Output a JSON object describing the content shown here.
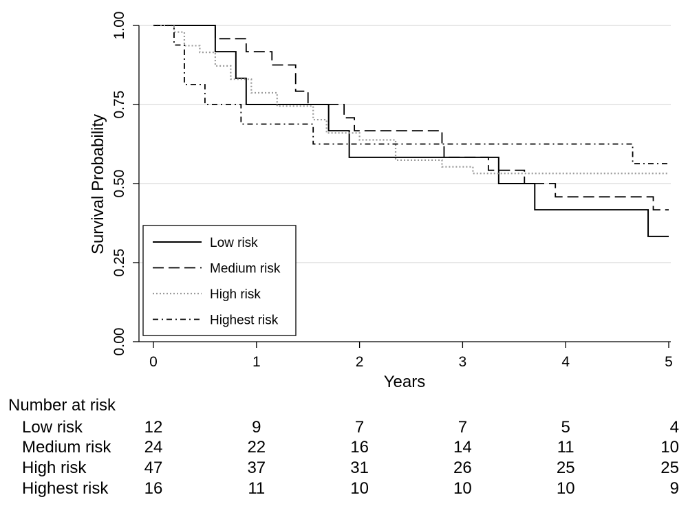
{
  "chart_data": {
    "type": "line",
    "subtype": "kaplan-meier step plot",
    "xlabel": "Years",
    "ylabel": "Survival Probability",
    "xlim": [
      0,
      5
    ],
    "ylim": [
      0,
      1
    ],
    "x_ticks": [
      "0",
      "1",
      "2",
      "3",
      "4",
      "5"
    ],
    "y_ticks": [
      "0.00",
      "0.25",
      "0.50",
      "0.75",
      "1.00"
    ],
    "grid": "horizontal",
    "legend_position": "bottom-left",
    "series": [
      {
        "name": "Low risk",
        "style": "solid",
        "steps": [
          [
            0,
            1.0
          ],
          [
            0.6,
            0.917
          ],
          [
            0.8,
            0.833
          ],
          [
            0.9,
            0.75
          ],
          [
            1.7,
            0.667
          ],
          [
            1.9,
            0.583
          ],
          [
            3.35,
            0.5
          ],
          [
            3.7,
            0.417
          ],
          [
            4.8,
            0.333
          ],
          [
            5.0,
            0.333
          ]
        ]
      },
      {
        "name": "Medium risk",
        "style": "dashed",
        "steps": [
          [
            0,
            1.0
          ],
          [
            0.6,
            0.958
          ],
          [
            0.9,
            0.917
          ],
          [
            1.15,
            0.875
          ],
          [
            1.38,
            0.792
          ],
          [
            1.5,
            0.75
          ],
          [
            1.85,
            0.708
          ],
          [
            1.95,
            0.667
          ],
          [
            2.8,
            0.625
          ],
          [
            2.82,
            0.583
          ],
          [
            3.25,
            0.542
          ],
          [
            3.6,
            0.5
          ],
          [
            3.9,
            0.458
          ],
          [
            4.85,
            0.417
          ],
          [
            5.0,
            0.417
          ]
        ]
      },
      {
        "name": "High risk",
        "style": "dotted",
        "steps": [
          [
            0,
            1.0
          ],
          [
            0.2,
            0.979
          ],
          [
            0.3,
            0.936
          ],
          [
            0.45,
            0.915
          ],
          [
            0.6,
            0.872
          ],
          [
            0.75,
            0.83
          ],
          [
            0.95,
            0.787
          ],
          [
            1.2,
            0.745
          ],
          [
            1.55,
            0.702
          ],
          [
            1.68,
            0.66
          ],
          [
            2.0,
            0.638
          ],
          [
            2.35,
            0.574
          ],
          [
            2.8,
            0.553
          ],
          [
            3.1,
            0.532
          ],
          [
            5.0,
            0.532
          ]
        ]
      },
      {
        "name": "Highest risk",
        "style": "dashdot",
        "steps": [
          [
            0,
            1.0
          ],
          [
            0.2,
            0.938
          ],
          [
            0.3,
            0.813
          ],
          [
            0.5,
            0.75
          ],
          [
            0.85,
            0.688
          ],
          [
            1.55,
            0.625
          ],
          [
            4.65,
            0.563
          ],
          [
            5.0,
            0.563
          ]
        ]
      }
    ],
    "risk_table": {
      "title": "Number at risk",
      "times": [
        0,
        1,
        2,
        3,
        4,
        5
      ],
      "rows": [
        {
          "label": "Low risk",
          "values": [
            "12",
            "9",
            "7",
            "7",
            "5",
            "4"
          ]
        },
        {
          "label": "Medium risk",
          "values": [
            "24",
            "22",
            "16",
            "14",
            "11",
            "10"
          ]
        },
        {
          "label": "High risk",
          "values": [
            "47",
            "37",
            "31",
            "26",
            "25",
            "25"
          ]
        },
        {
          "label": "Highest risk",
          "values": [
            "16",
            "11",
            "10",
            "10",
            "10",
            "9"
          ]
        }
      ]
    }
  }
}
